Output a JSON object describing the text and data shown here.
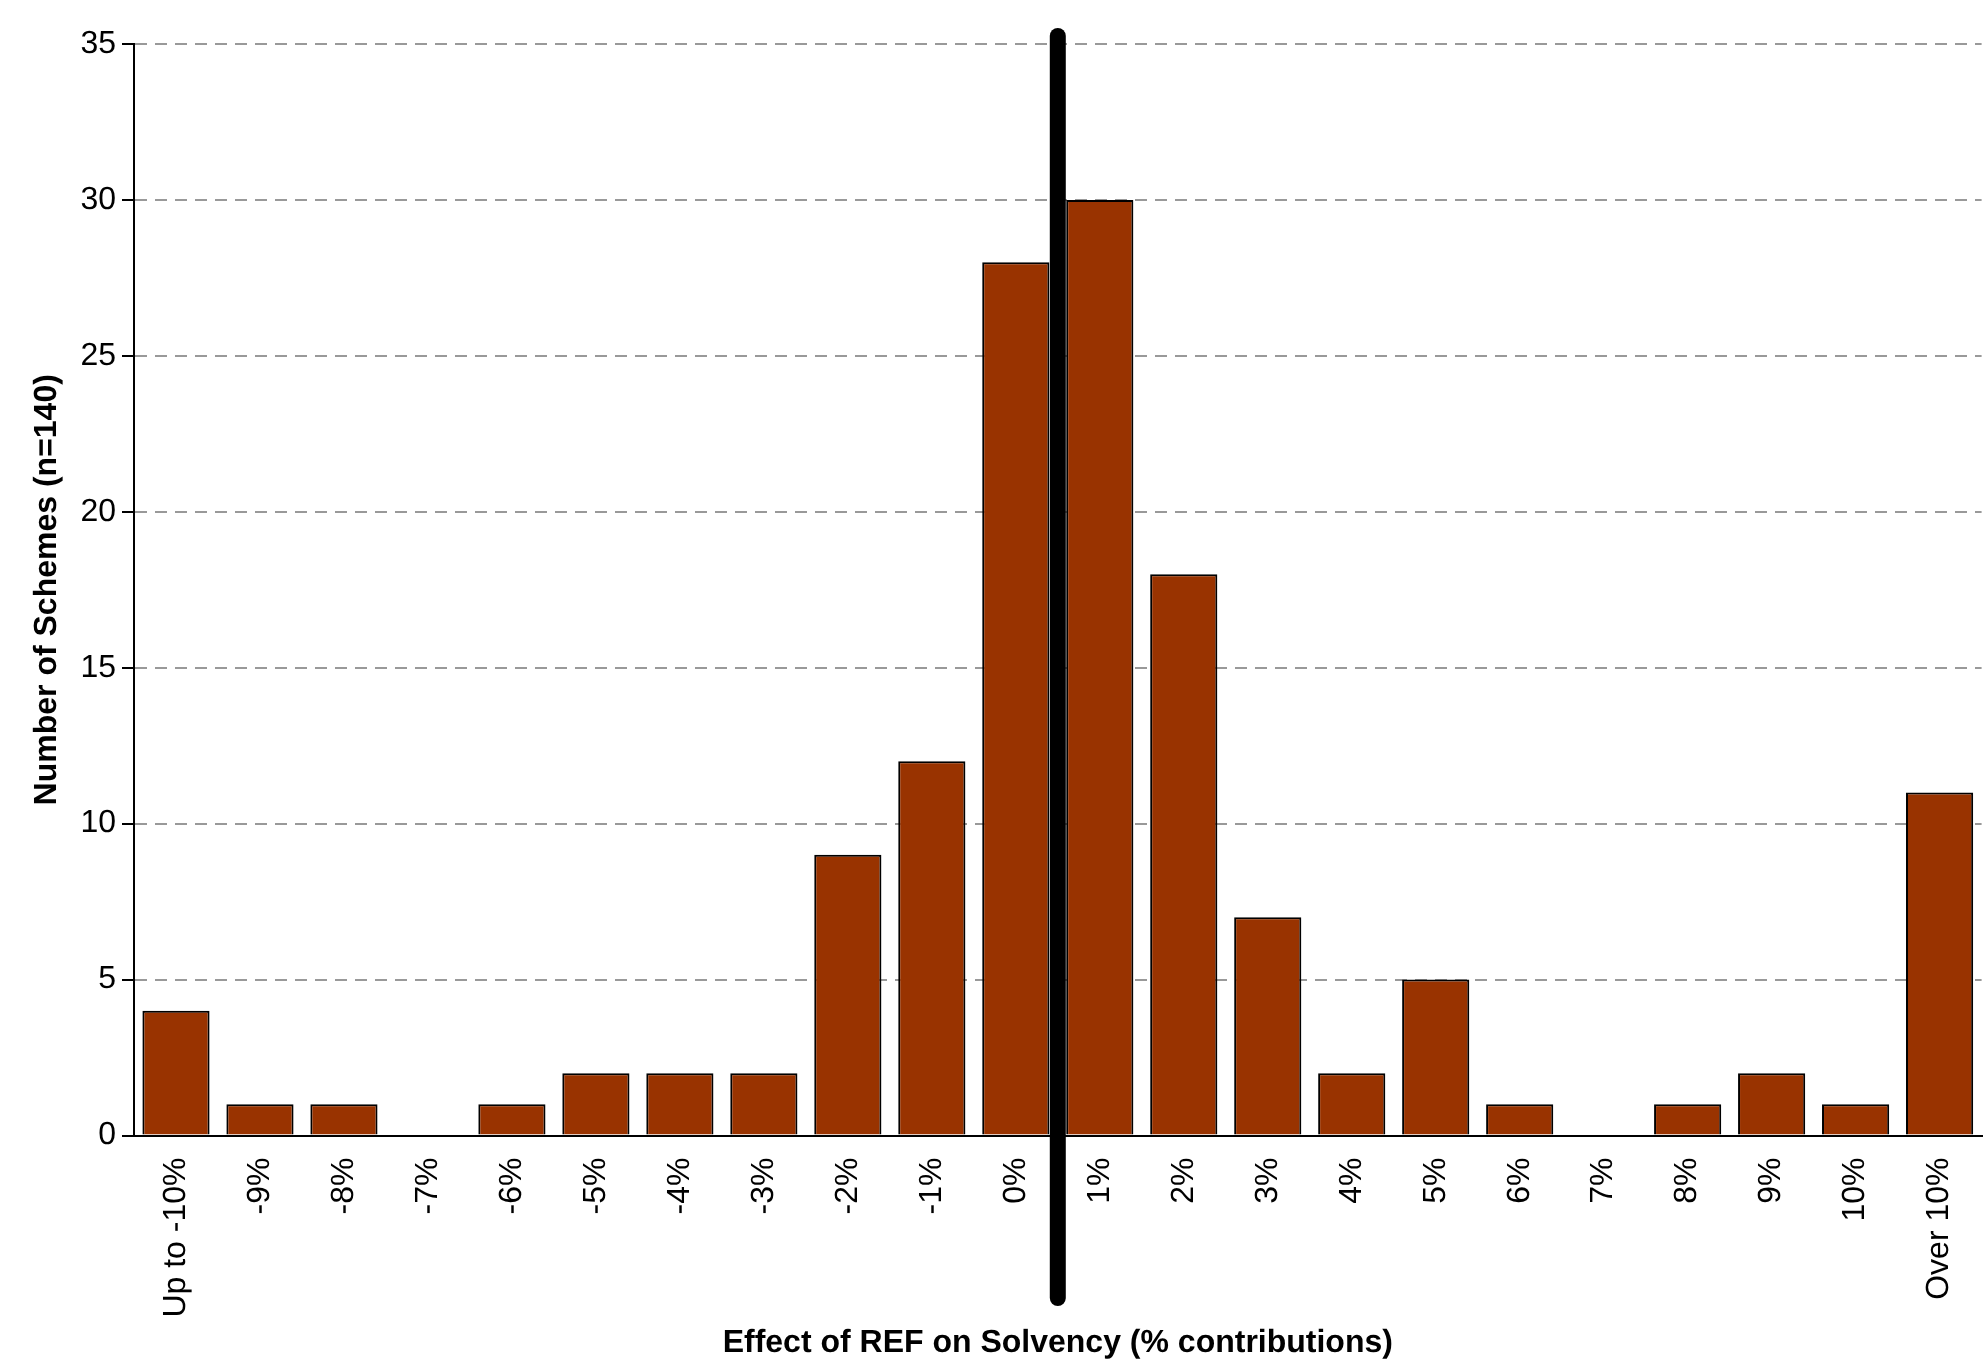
{
  "chart_data": {
    "type": "bar",
    "xlabel": "Effect of REF on Solvency (% contributions)",
    "ylabel": "Number of Schemes (n=140)",
    "categories": [
      "Up to -10%",
      "-9%",
      "-8%",
      "-7%",
      "-6%",
      "-5%",
      "-4%",
      "-3%",
      "-2%",
      "-1%",
      "0%",
      "1%",
      "2%",
      "3%",
      "4%",
      "5%",
      "6%",
      "7%",
      "8%",
      "9%",
      "10%",
      "Over 10%"
    ],
    "values": [
      4,
      1,
      1,
      0,
      1,
      2,
      2,
      2,
      9,
      12,
      28,
      30,
      18,
      7,
      2,
      5,
      1,
      0,
      1,
      2,
      1,
      11
    ],
    "color": "#993300",
    "ylim": [
      0,
      35
    ],
    "yticks": [
      0,
      5,
      10,
      15,
      20,
      25,
      30,
      35
    ],
    "grid": "y",
    "legend": false,
    "ref_lines": [
      {
        "axis": "x",
        "value": "0%",
        "color": "#000000",
        "line_style": "solid"
      }
    ]
  }
}
